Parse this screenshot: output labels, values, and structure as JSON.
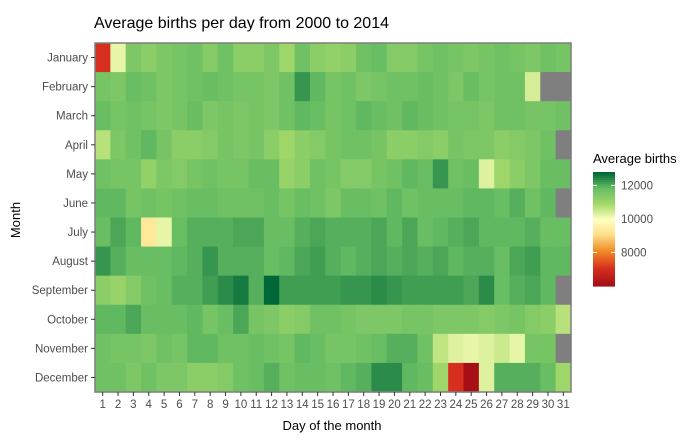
{
  "chart_data": {
    "type": "heatmap",
    "title": "Average births per day from 2000 to 2014",
    "xlabel": "Day of the month",
    "ylabel": "Month",
    "x": [
      "1",
      "2",
      "3",
      "4",
      "5",
      "6",
      "7",
      "8",
      "9",
      "10",
      "11",
      "12",
      "13",
      "14",
      "15",
      "16",
      "17",
      "18",
      "19",
      "20",
      "21",
      "22",
      "23",
      "24",
      "25",
      "26",
      "27",
      "28",
      "29",
      "30",
      "31"
    ],
    "y": [
      "January",
      "February",
      "March",
      "April",
      "May",
      "June",
      "July",
      "August",
      "September",
      "October",
      "November",
      "December"
    ],
    "values": [
      [
        7000,
        10200,
        11500,
        11300,
        11500,
        11600,
        11700,
        11400,
        11700,
        11300,
        11300,
        11500,
        11000,
        11700,
        11300,
        11200,
        11300,
        11700,
        11800,
        11400,
        11400,
        11600,
        11700,
        11600,
        11500,
        11600,
        11700,
        11600,
        11500,
        11700,
        11600
      ],
      [
        11600,
        11500,
        11800,
        11700,
        11500,
        11600,
        11700,
        11800,
        11700,
        11600,
        11600,
        11500,
        11700,
        12300,
        11900,
        11600,
        11700,
        11500,
        11600,
        11700,
        11700,
        11800,
        11700,
        11500,
        11800,
        11600,
        11700,
        11700,
        10400,
        null,
        null
      ],
      [
        11800,
        11600,
        11700,
        11600,
        11500,
        11600,
        11800,
        11500,
        11600,
        11500,
        11600,
        11500,
        11700,
        11900,
        11800,
        11600,
        11700,
        11900,
        11800,
        11700,
        11900,
        11800,
        11700,
        11600,
        11600,
        11500,
        11700,
        11700,
        11600,
        11600,
        11700
      ],
      [
        10700,
        11500,
        11700,
        11900,
        11600,
        11300,
        11300,
        11400,
        11600,
        11500,
        11600,
        11300,
        11000,
        11300,
        11400,
        11600,
        11700,
        11700,
        11600,
        11300,
        11300,
        11400,
        11300,
        11600,
        11500,
        11500,
        11300,
        11400,
        11500,
        11700,
        null
      ],
      [
        11700,
        11600,
        11600,
        11200,
        11500,
        11400,
        11600,
        11700,
        11600,
        11600,
        11800,
        11800,
        11100,
        11300,
        11700,
        11600,
        11400,
        11400,
        11600,
        11700,
        11900,
        11800,
        12300,
        11700,
        11800,
        10300,
        11000,
        11300,
        11500,
        11800,
        11800
      ],
      [
        11900,
        11900,
        11600,
        11700,
        11600,
        11700,
        11800,
        11800,
        11700,
        11700,
        11700,
        11800,
        11600,
        11800,
        11700,
        11500,
        11800,
        11800,
        11700,
        11900,
        11700,
        11800,
        11800,
        11800,
        11900,
        11900,
        11800,
        12000,
        11700,
        11900,
        null
      ],
      [
        11800,
        12100,
        11900,
        9300,
        10200,
        11800,
        12000,
        12000,
        12000,
        12100,
        12100,
        11800,
        11800,
        12000,
        12100,
        12000,
        12000,
        12000,
        12100,
        11900,
        12100,
        11800,
        11900,
        12000,
        12100,
        11900,
        11900,
        11900,
        12000,
        11800,
        11800
      ],
      [
        12300,
        12000,
        11800,
        11800,
        11800,
        11900,
        12000,
        12300,
        12000,
        12000,
        12000,
        11800,
        11900,
        12100,
        12200,
        12000,
        11900,
        12000,
        12100,
        12000,
        12100,
        12000,
        12100,
        11900,
        12000,
        12000,
        11800,
        12100,
        12200,
        11900,
        11900
      ],
      [
        11300,
        11100,
        11400,
        11700,
        11800,
        12000,
        12000,
        12200,
        12400,
        12600,
        12000,
        12800,
        12200,
        12200,
        12200,
        12200,
        12300,
        12300,
        12400,
        12300,
        12200,
        12200,
        12200,
        12200,
        12100,
        12400,
        11800,
        12000,
        12100,
        11900,
        null
      ],
      [
        11900,
        11900,
        12100,
        11800,
        11800,
        11800,
        11900,
        11600,
        11800,
        12100,
        11600,
        11500,
        11300,
        11400,
        11700,
        11700,
        11600,
        11500,
        11500,
        11500,
        11600,
        11600,
        11500,
        11500,
        11500,
        11400,
        11500,
        11600,
        11400,
        11300,
        10700
      ],
      [
        11700,
        11600,
        11600,
        11500,
        11700,
        11600,
        11900,
        11900,
        11700,
        11700,
        11800,
        11700,
        11600,
        11900,
        11800,
        11600,
        11600,
        11700,
        11800,
        12000,
        12000,
        11700,
        10600,
        10300,
        10200,
        10300,
        10500,
        10200,
        11600,
        11600,
        null
      ],
      [
        11700,
        11700,
        11500,
        11700,
        11500,
        11500,
        11300,
        11300,
        11400,
        11700,
        11800,
        12000,
        11700,
        11800,
        11800,
        11700,
        11900,
        12000,
        12400,
        12400,
        11900,
        11800,
        11000,
        7000,
        6000,
        10300,
        12000,
        12000,
        12000,
        11800,
        11000
      ]
    ],
    "na_color": "#7f7f7f",
    "color_scale": {
      "low_color": "#a50f15",
      "mid_color": "#ffffbf",
      "high_color": "#006837",
      "min": 6000,
      "max": 12800
    },
    "legend": {
      "title": "Average births",
      "ticks": [
        8000,
        10000,
        12000
      ],
      "placement": "right"
    },
    "grid": false,
    "panel_border_color": "#7f7f7f"
  }
}
